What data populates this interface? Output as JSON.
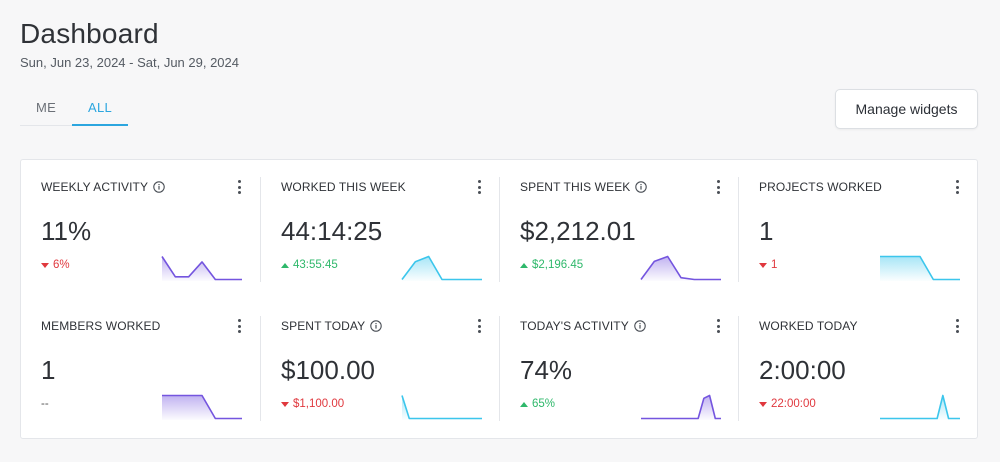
{
  "header": {
    "title": "Dashboard",
    "date_range": "Sun, Jun 23, 2024 - Sat, Jun 29, 2024"
  },
  "tabs": [
    {
      "label": "ME",
      "active": false
    },
    {
      "label": "ALL",
      "active": true
    }
  ],
  "manage_widgets_label": "Manage widgets",
  "colors": {
    "accent": "#2ca6df",
    "up": "#2fb86b",
    "down": "#e0383e",
    "purple": "#7455df",
    "cyan": "#3cc6ec"
  },
  "widgets": [
    {
      "title": "WEEKLY ACTIVITY",
      "info": true,
      "value": "11%",
      "delta": "6%",
      "trend": "down",
      "color": "purple",
      "spark": [
        17,
        2,
        2,
        13,
        0,
        0,
        0
      ]
    },
    {
      "title": "WORKED THIS WEEK",
      "info": false,
      "value": "44:14:25",
      "delta": "43:55:45",
      "trend": "up",
      "color": "cyan",
      "spark": [
        0,
        34,
        44,
        0,
        0,
        0,
        0
      ]
    },
    {
      "title": "SPENT THIS WEEK",
      "info": true,
      "value": "$2,212.01",
      "delta": "$2,196.45",
      "trend": "up",
      "color": "purple",
      "spark": [
        0,
        30,
        38,
        3,
        0,
        0,
        0
      ]
    },
    {
      "title": "PROJECTS WORKED",
      "info": false,
      "value": "1",
      "delta": "1",
      "trend": "down",
      "color": "cyan",
      "spark": [
        1,
        1,
        1,
        1,
        0,
        0,
        0
      ]
    },
    {
      "title": "MEMBERS WORKED",
      "info": false,
      "value": "1",
      "delta": "--",
      "trend": "none",
      "color": "purple",
      "spark": [
        1,
        1,
        1,
        1,
        0,
        0,
        0
      ]
    },
    {
      "title": "SPENT TODAY",
      "info": true,
      "value": "$100.00",
      "delta": "$1,100.00",
      "trend": "down",
      "color": "cyan",
      "spark": [
        11,
        0,
        0,
        0,
        0,
        0,
        0,
        0,
        0,
        0,
        0,
        0
      ]
    },
    {
      "title": "TODAY'S ACTIVITY",
      "info": true,
      "value": "74%",
      "delta": "65%",
      "trend": "up",
      "color": "purple",
      "spark": [
        0,
        0,
        0,
        0,
        0,
        0,
        0,
        0,
        0,
        0,
        0,
        65,
        74,
        0,
        0
      ]
    },
    {
      "title": "WORKED TODAY",
      "info": false,
      "value": "2:00:00",
      "delta": "22:00:00",
      "trend": "down",
      "color": "cyan",
      "spark": [
        0,
        0,
        0,
        0,
        0,
        0,
        0,
        0,
        0,
        0,
        0,
        60,
        0,
        0,
        0
      ]
    }
  ]
}
